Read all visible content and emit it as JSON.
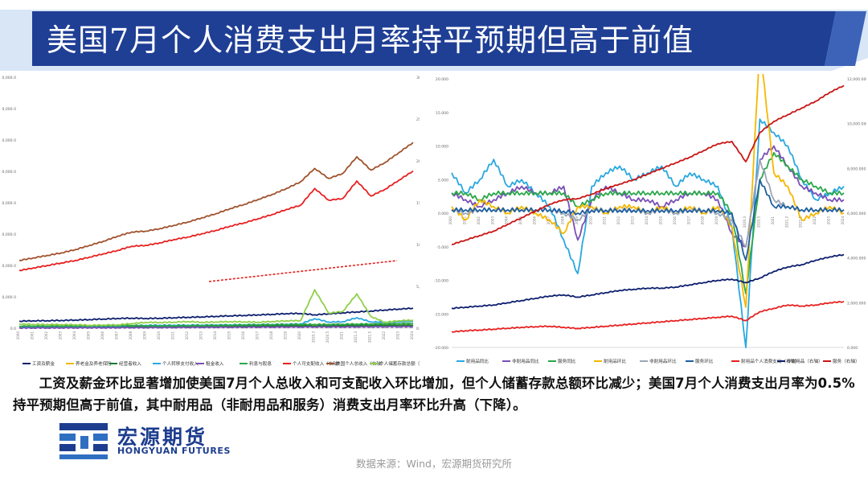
{
  "header": {
    "title": "美国7月个人消费支出月率持平预期但高于前值"
  },
  "caption": "工资及薪金环比显著增加使美国7月个人总收入和可支配收入环比增加，但个人储蓄存款总额环比减少；美国7月个人消费支出月率为0.5%持平预期但高于前值，其中耐用品（非耐用品和服务）消费支出月率环比升高（下降）。",
  "logo": {
    "cn": "宏源期货",
    "en": "HONGYUAN FUTURES"
  },
  "source": "数据来源：Wind，宏源期货研究所",
  "colors": {
    "title_blue": "#1f3f95",
    "title_light": "#d9e6f6"
  },
  "chart_data": [
    {
      "type": "line",
      "title": "",
      "x": [
        "2000",
        "2001",
        "2002",
        "2003",
        "2004",
        "2005",
        "2006",
        "2007",
        "2008",
        "2009",
        "2010",
        "2011",
        "2012",
        "2013",
        "2014",
        "2015",
        "2016",
        "2017",
        "2018",
        "2019",
        "2020",
        "2020.3",
        "2020.5",
        "2021",
        "2021.3",
        "2021.5",
        "2022",
        "2023",
        "2024"
      ],
      "left_axis": {
        "ticks": [
          "160,000.0",
          "140,000.0",
          "120,000.0",
          "100,000.0",
          "80,000.0",
          "60,000.0",
          "40,000.0",
          "20,000.0",
          "0.0"
        ],
        "ylim": [
          0,
          160000
        ]
      },
      "right_axis": {
        "ticks": [
          "30,000.0",
          "25,000.0",
          "20,000.0",
          "15,000.0",
          "10,000.0",
          "5,000.0",
          "0.0"
        ],
        "ylim": [
          0,
          30000
        ]
      },
      "series": [
        {
          "name": "工资及薪金",
          "axis": "left",
          "color": "#0d1f6e",
          "values": [
            4500,
            4700,
            4800,
            4950,
            5200,
            5500,
            5850,
            6200,
            6400,
            6200,
            6350,
            6650,
            6950,
            7200,
            7550,
            7900,
            8150,
            8500,
            8850,
            9300,
            9400,
            8500,
            9200,
            9800,
            10400,
            10900,
            11600,
            12200,
            12750
          ]
        },
        {
          "name": "养老金及养老保险",
          "axis": "left",
          "color": "#f5b700",
          "values": [
            1200,
            1250,
            1300,
            1350,
            1400,
            1450,
            1500,
            1560,
            1620,
            1680,
            1740,
            1800,
            1860,
            1920,
            1980,
            2040,
            2100,
            2170,
            2240,
            2320,
            2400,
            2420,
            2450,
            2520,
            2600,
            2680,
            2780,
            2880,
            2980
          ]
        },
        {
          "name": "经营者收入",
          "axis": "left",
          "color": "#1a7a2e",
          "values": [
            700,
            720,
            760,
            820,
            880,
            940,
            980,
            1020,
            1040,
            1000,
            1050,
            1100,
            1180,
            1260,
            1320,
            1370,
            1400,
            1460,
            1520,
            1580,
            1600,
            1450,
            1560,
            1680,
            1760,
            1790,
            1830,
            1880,
            1920
          ]
        },
        {
          "name": "个人转移支付收入",
          "axis": "left",
          "color": "#29a8e0",
          "values": [
            1000,
            1060,
            1110,
            1160,
            1220,
            1290,
            1360,
            1450,
            1680,
            1840,
            1900,
            1930,
            1960,
            2020,
            2090,
            2160,
            2240,
            2330,
            2440,
            2560,
            2700,
            6100,
            3900,
            4100,
            6700,
            4000,
            3900,
            4200,
            4500
          ]
        },
        {
          "name": "租金收入",
          "axis": "left",
          "color": "#7a4fb5",
          "values": [
            150,
            180,
            210,
            240,
            270,
            300,
            320,
            330,
            350,
            370,
            400,
            460,
            520,
            560,
            600,
            620,
            650,
            690,
            720,
            760,
            790,
            800,
            810,
            820,
            850,
            880,
            900,
            930,
            950
          ]
        },
        {
          "name": "利息与股息",
          "axis": "left",
          "color": "#2aa84a",
          "values": [
            1300,
            1320,
            1320,
            1350,
            1400,
            1500,
            1600,
            1700,
            1750,
            1550,
            1500,
            1600,
            1700,
            1750,
            1850,
            1950,
            2100,
            2200,
            2300,
            2400,
            2450,
            2420,
            2400,
            2500,
            2620,
            2700,
            2800,
            2950,
            3100
          ]
        },
        {
          "name": "个人可支配收入（右轴）",
          "axis": "right",
          "color": "#e82020",
          "values": [
            6900,
            7200,
            7500,
            7800,
            8100,
            8500,
            8900,
            9300,
            9800,
            9900,
            10200,
            10600,
            10900,
            11300,
            11700,
            12200,
            12600,
            13100,
            13600,
            14200,
            14700,
            16700,
            15300,
            15500,
            17600,
            15800,
            16600,
            17700,
            18800
          ]
        },
        {
          "name": "美国个人总收入（右轴）",
          "axis": "right",
          "color": "#a0522d",
          "values": [
            8100,
            8400,
            8700,
            9000,
            9400,
            9900,
            10400,
            11000,
            11500,
            11600,
            11900,
            12300,
            12700,
            13200,
            13700,
            14300,
            14800,
            15400,
            16000,
            16700,
            17500,
            19100,
            17900,
            18500,
            20500,
            18900,
            19800,
            21000,
            22200
          ]
        },
        {
          "name": "个人储蓄存款总额（右轴）",
          "axis": "right",
          "color": "#8fcf4a",
          "values": [
            500,
            450,
            450,
            430,
            420,
            350,
            380,
            400,
            550,
            700,
            680,
            720,
            800,
            700,
            750,
            780,
            760,
            720,
            800,
            880,
            900,
            4600,
            1800,
            2000,
            4100,
            1400,
            700,
            900,
            950
          ]
        }
      ],
      "annotation": "red dashed trend line"
    },
    {
      "type": "line",
      "title": "",
      "x": [
        "2000",
        "2001",
        "2002",
        "2003",
        "2004",
        "2005",
        "2006",
        "2007",
        "2008",
        "2009",
        "2010",
        "2011",
        "2012",
        "2013",
        "2014",
        "2015",
        "2016",
        "2017",
        "2018",
        "2019",
        "2020",
        "2020.3",
        "2020.5",
        "2021",
        "2021.3",
        "2021.5",
        "2022",
        "2023",
        "2024"
      ],
      "left_axis": {
        "ticks": [
          "20.000",
          "15.000",
          "10.000",
          "5.000",
          "0.000",
          "-5.000",
          "-10.000",
          "-15.000",
          "-20.000"
        ],
        "ylim": [
          -20,
          20
        ]
      },
      "right_axis": {
        "ticks": [
          "12,000.000",
          "10,000.000",
          "8,000.000",
          "6,000.000",
          "4,000.000",
          "2,000.000",
          "0.000"
        ],
        "ylim": [
          0,
          12000
        ]
      },
      "series": [
        {
          "name": "耐用品同比",
          "axis": "left",
          "color": "#29a8e0",
          "values": [
            6,
            3,
            5,
            8,
            4,
            5,
            3,
            1,
            -4,
            -9,
            4,
            6,
            7,
            5,
            6,
            7,
            4,
            6,
            5,
            4,
            -2,
            -20,
            14,
            12,
            10,
            5,
            2,
            3,
            4
          ]
        },
        {
          "name": "非耐用品同比",
          "axis": "left",
          "color": "#7a4fb5",
          "values": [
            3,
            2,
            1,
            2,
            3,
            4,
            3,
            3,
            4,
            -4,
            2,
            4,
            3,
            2,
            2,
            1,
            2,
            3,
            3,
            2,
            -3,
            -5,
            8,
            10,
            7,
            4,
            3,
            2,
            2
          ]
        },
        {
          "name": "服务同比",
          "axis": "left",
          "color": "#2aa84a",
          "values": [
            3,
            3,
            2,
            3,
            3,
            3,
            3,
            3,
            3,
            1,
            2,
            3,
            3,
            3,
            3,
            3,
            3,
            3,
            3,
            3,
            0,
            -12,
            5,
            9,
            7,
            5,
            4,
            3,
            3
          ]
        },
        {
          "name": "耐用品环比",
          "axis": "left",
          "color": "#f5b700",
          "values": [
            1,
            -1,
            2,
            1,
            0,
            1,
            0,
            -1,
            -3,
            1,
            1,
            0,
            1,
            1,
            0,
            1,
            0,
            1,
            0,
            1,
            -2,
            -14,
            25,
            6,
            4,
            -1,
            0,
            1,
            0
          ]
        },
        {
          "name": "非耐用品环比",
          "axis": "left",
          "color": "#9aa6b8",
          "values": [
            0.5,
            0,
            0.5,
            0.5,
            0.5,
            0.5,
            0.5,
            0.5,
            0,
            -1,
            0.5,
            0.5,
            0.5,
            0.5,
            0,
            0.5,
            0,
            0.5,
            0.5,
            0,
            -1,
            -5,
            8,
            2,
            1,
            0.5,
            0.5,
            0.5,
            0.5
          ]
        },
        {
          "name": "服务环比",
          "axis": "left",
          "color": "#1f5fa0",
          "values": [
            0.5,
            0.5,
            0.5,
            0.5,
            0.5,
            0.5,
            0.5,
            0.5,
            0.3,
            0,
            0.4,
            0.4,
            0.4,
            0.4,
            0.4,
            0.4,
            0.4,
            0.4,
            0.4,
            0.4,
            0,
            -7,
            5,
            1,
            1,
            0.5,
            0.5,
            0.5,
            0.5
          ]
        },
        {
          "name": "耐用品个人消费支出（右轴）",
          "axis": "right",
          "color": "#e82020",
          "values": [
            700,
            750,
            780,
            820,
            860,
            900,
            930,
            950,
            900,
            850,
            900,
            950,
            1000,
            1050,
            1100,
            1150,
            1200,
            1250,
            1300,
            1350,
            1400,
            1200,
            1600,
            1750,
            1900,
            1850,
            1900,
            2000,
            2050
          ]
        },
        {
          "name": "非耐用品（右轴）",
          "axis": "right",
          "color": "#0d1f6e",
          "values": [
            1750,
            1800,
            1850,
            1900,
            2000,
            2100,
            2200,
            2300,
            2350,
            2250,
            2350,
            2450,
            2550,
            2600,
            2650,
            2650,
            2700,
            2800,
            2900,
            3000,
            3050,
            2900,
            3100,
            3400,
            3600,
            3700,
            3900,
            4050,
            4150
          ]
        },
        {
          "name": "服务（右轴）",
          "axis": "right",
          "color": "#c81515",
          "values": [
            4600,
            4800,
            5000,
            5200,
            5500,
            5800,
            6100,
            6400,
            6600,
            6650,
            6850,
            7100,
            7300,
            7500,
            7750,
            8000,
            8250,
            8500,
            8800,
            9100,
            9200,
            8300,
            9600,
            10100,
            10400,
            10700,
            11000,
            11400,
            11700
          ]
        }
      ]
    }
  ]
}
